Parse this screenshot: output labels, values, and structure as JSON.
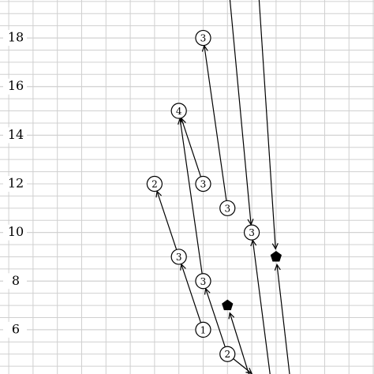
{
  "chart_data": {
    "type": "graph",
    "xlim": [
      -1.36,
      14.03
    ],
    "ylim": [
      4.18,
      19.56
    ],
    "yticks": [
      6,
      8,
      10,
      12,
      14,
      16,
      18
    ],
    "grid": true,
    "nodes": [
      {
        "x": 7,
        "y": 18,
        "label": "3"
      },
      {
        "x": 6,
        "y": 15,
        "label": "4"
      },
      {
        "x": 7,
        "y": 12,
        "label": "3"
      },
      {
        "x": 5,
        "y": 12,
        "label": "2"
      },
      {
        "x": 8,
        "y": 11,
        "label": "3"
      },
      {
        "x": 9,
        "y": 10,
        "label": "3"
      },
      {
        "x": 6,
        "y": 9,
        "label": "3"
      },
      {
        "x": 7,
        "y": 8,
        "label": "3"
      },
      {
        "x": 7,
        "y": 6,
        "label": "1"
      },
      {
        "x": 8,
        "y": 5,
        "label": "2"
      }
    ],
    "markers": [
      {
        "x": 8,
        "y": 7
      },
      {
        "x": 10,
        "y": 9
      }
    ],
    "edges": [
      [
        7,
        6,
        6,
        9
      ],
      [
        6,
        9,
        5,
        12
      ],
      [
        7,
        8,
        6,
        15
      ],
      [
        7,
        12,
        6,
        15
      ],
      [
        8,
        11,
        7,
        18
      ],
      [
        8,
        5,
        7,
        8
      ],
      [
        9,
        3.8,
        8,
        7
      ],
      [
        9.8,
        3.8,
        9,
        10
      ],
      [
        10.6,
        3.8,
        10,
        9
      ],
      [
        8.1,
        19.6,
        9,
        10
      ],
      [
        9.3,
        19.6,
        10,
        9
      ],
      [
        8,
        5,
        9,
        4.2
      ]
    ]
  }
}
